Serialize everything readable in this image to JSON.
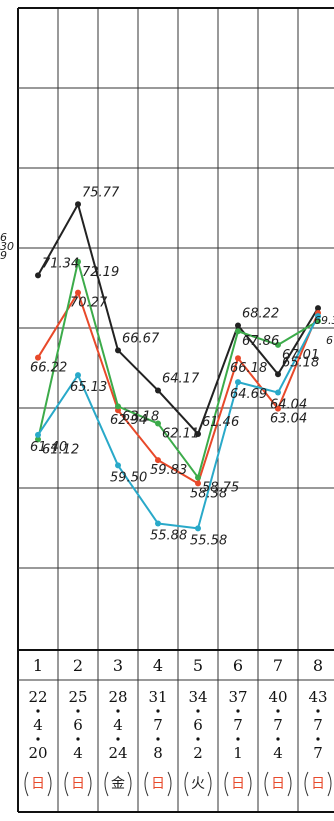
{
  "chart_data": {
    "type": "line",
    "x": [
      "1",
      "2",
      "3",
      "4",
      "5",
      "6",
      "7",
      "8"
    ],
    "columns": [
      {
        "n": "1",
        "year": "22",
        "month": "4",
        "day": "20",
        "weekday": "日",
        "weekday_color": "#e8492a"
      },
      {
        "n": "2",
        "year": "25",
        "month": "6",
        "day": "4",
        "weekday": "日",
        "weekday_color": "#e8492a"
      },
      {
        "n": "3",
        "year": "28",
        "month": "4",
        "day": "24",
        "weekday": "金",
        "weekday_color": "#222222"
      },
      {
        "n": "4",
        "year": "31",
        "month": "7",
        "day": "8",
        "weekday": "日",
        "weekday_color": "#e8492a"
      },
      {
        "n": "5",
        "year": "34",
        "month": "6",
        "day": "2",
        "weekday": "火",
        "weekday_color": "#222222"
      },
      {
        "n": "6",
        "year": "37",
        "month": "7",
        "day": "1",
        "weekday": "日",
        "weekday_color": "#e8492a"
      },
      {
        "n": "7",
        "year": "40",
        "month": "7",
        "day": "4",
        "weekday": "日",
        "weekday_color": "#e8492a"
      },
      {
        "n": "8",
        "year": "43",
        "month": "7",
        "day": "7",
        "weekday": "日",
        "weekday_color": "#e8492a"
      }
    ],
    "series": [
      {
        "color": "#222222",
        "values": [
          71.34,
          75.77,
          66.67,
          64.17,
          61.46,
          68.22,
          65.18,
          69.3
        ]
      },
      {
        "color": "#e8492a",
        "values": [
          66.22,
          70.27,
          62.94,
          59.83,
          58.38,
          66.18,
          63.04,
          69.0
        ]
      },
      {
        "color": "#3cab4a",
        "values": [
          61.12,
          72.19,
          63.18,
          62.11,
          58.75,
          67.86,
          67.01,
          68.5
        ]
      },
      {
        "color": "#29a9c9",
        "values": [
          61.4,
          65.13,
          59.5,
          55.88,
          55.58,
          64.69,
          64.04,
          68.8
        ]
      }
    ],
    "ylim": [
      48,
      88
    ],
    "grid": true,
    "left_edge_fragments": [
      "6",
      "30",
      "9"
    ],
    "right_edge_fragments": [
      "69.3",
      "6"
    ],
    "point_labels": [
      {
        "text": "71.34",
        "series": 0,
        "index": 0
      },
      {
        "text": "75.77",
        "series": 0,
        "index": 1
      },
      {
        "text": "66.67",
        "series": 0,
        "index": 2
      },
      {
        "text": "64.17",
        "series": 0,
        "index": 3
      },
      {
        "text": "61.46",
        "series": 0,
        "index": 4
      },
      {
        "text": "68.22",
        "series": 0,
        "index": 5
      },
      {
        "text": "65.18",
        "series": 0,
        "index": 6
      },
      {
        "text": "66.22",
        "series": 1,
        "index": 0
      },
      {
        "text": "70.27",
        "series": 1,
        "index": 1
      },
      {
        "text": "62.94",
        "series": 1,
        "index": 2
      },
      {
        "text": "59.83",
        "series": 1,
        "index": 3
      },
      {
        "text": "58.38",
        "series": 1,
        "index": 4
      },
      {
        "text": "66.18",
        "series": 1,
        "index": 5
      },
      {
        "text": "63.04",
        "series": 1,
        "index": 6
      },
      {
        "text": "61.12",
        "series": 2,
        "index": 0
      },
      {
        "text": "72.19",
        "series": 2,
        "index": 1
      },
      {
        "text": "63.18",
        "series": 2,
        "index": 2
      },
      {
        "text": "62.11",
        "series": 2,
        "index": 3
      },
      {
        "text": "58.75",
        "series": 2,
        "index": 4
      },
      {
        "text": "67.86",
        "series": 2,
        "index": 5
      },
      {
        "text": "67.01",
        "series": 2,
        "index": 6
      },
      {
        "text": "61.40",
        "series": 3,
        "index": 0
      },
      {
        "text": "65.13",
        "series": 3,
        "index": 1
      },
      {
        "text": "59.50",
        "series": 3,
        "index": 2
      },
      {
        "text": "55.88",
        "series": 3,
        "index": 3
      },
      {
        "text": "55.58",
        "series": 3,
        "index": 4
      },
      {
        "text": "64.69",
        "series": 3,
        "index": 5
      },
      {
        "text": "64.04",
        "series": 3,
        "index": 6
      }
    ]
  }
}
